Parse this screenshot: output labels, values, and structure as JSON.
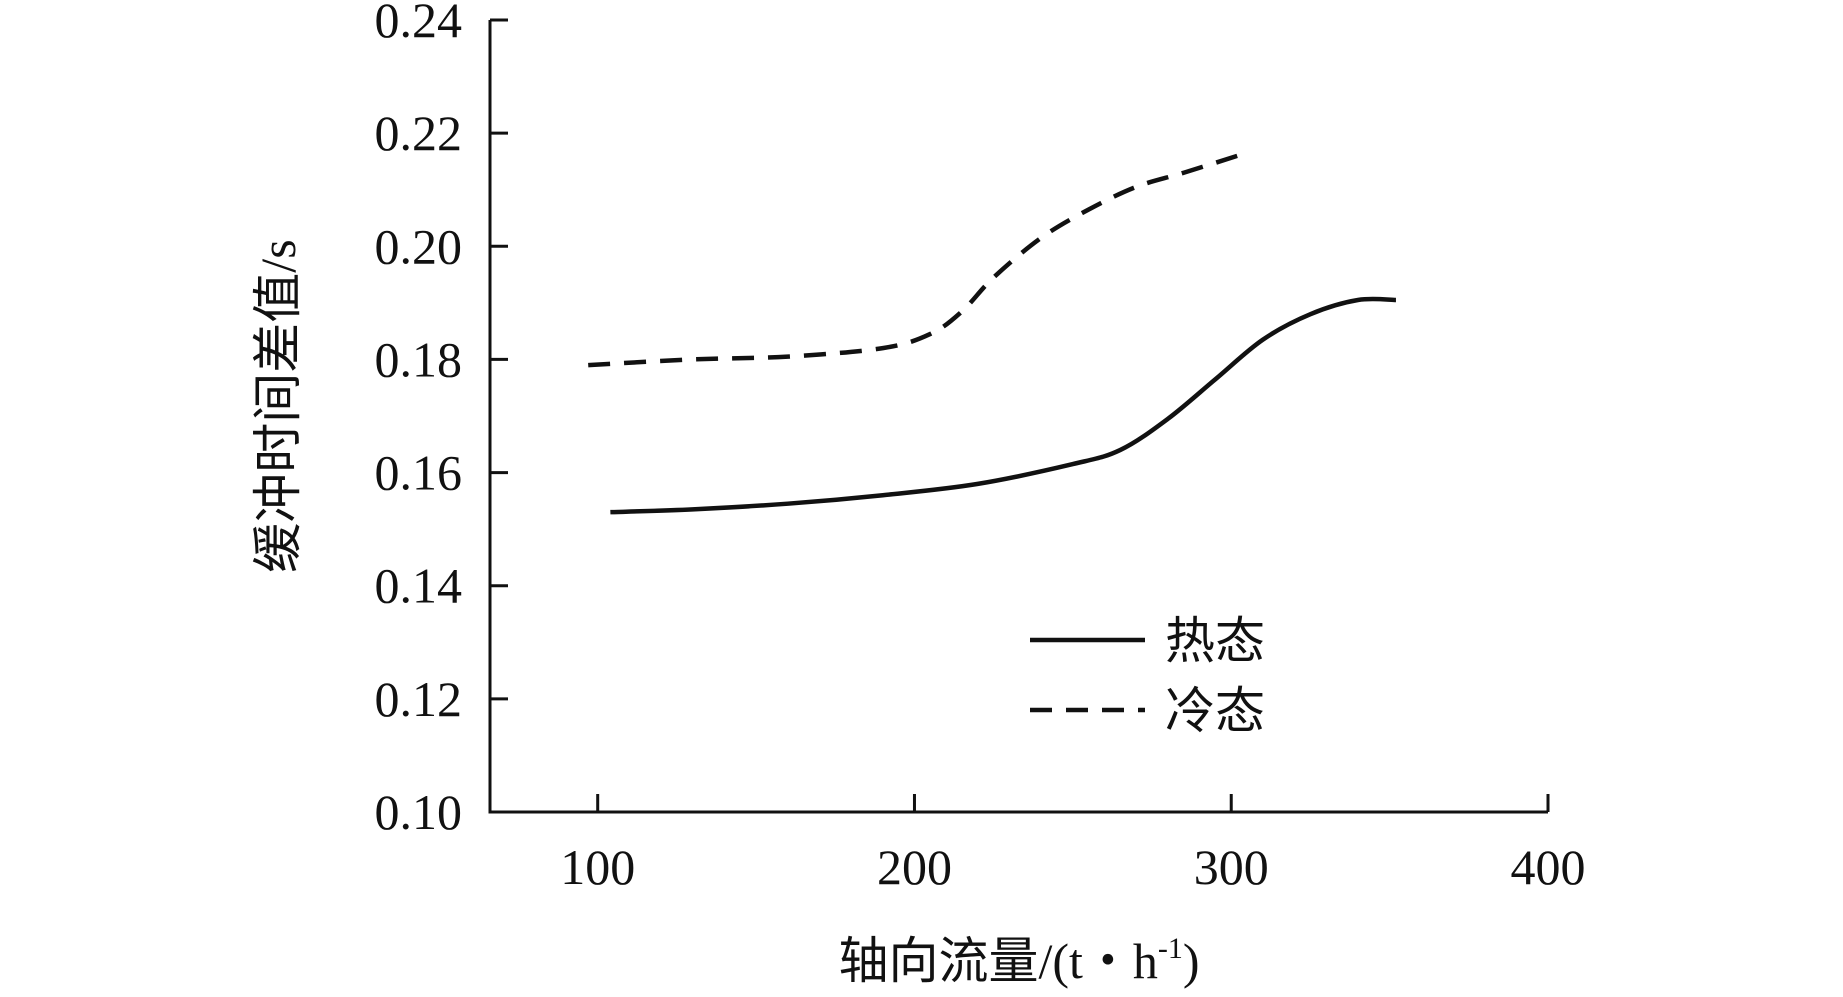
{
  "chart_data": {
    "type": "line",
    "title": "",
    "xlabel": "轴向流量/(t・h",
    "xlabel_sup": "-1",
    "xlabel_close": ")",
    "ylabel": "缓冲时间差值/s",
    "xlim": [
      66,
      400
    ],
    "ylim": [
      0.1,
      0.24
    ],
    "x_ticks": [
      100,
      200,
      300,
      400
    ],
    "x_tick_labels": [
      "100",
      "200",
      "300",
      "400"
    ],
    "y_ticks": [
      0.1,
      0.12,
      0.14,
      0.16,
      0.18,
      0.2,
      0.22,
      0.24
    ],
    "y_tick_labels": [
      "0.10",
      "0.12",
      "0.14",
      "0.16",
      "0.18",
      "0.20",
      "0.22",
      "0.24"
    ],
    "grid": false,
    "legend_position": "bottom-right",
    "series": [
      {
        "name": "热态",
        "style": "solid",
        "color": "#111111",
        "x": [
          104,
          130,
          160,
          190,
          220,
          250,
          265,
          280,
          295,
          310,
          325,
          340,
          352
        ],
        "y": [
          0.153,
          0.1535,
          0.1545,
          0.156,
          0.158,
          0.1615,
          0.164,
          0.1695,
          0.1765,
          0.1835,
          0.188,
          0.1905,
          0.1905
        ]
      },
      {
        "name": "冷态",
        "style": "dashed",
        "color": "#111111",
        "x": [
          97,
          130,
          160,
          190,
          205,
          215,
          225,
          240,
          255,
          270,
          285,
          302
        ],
        "y": [
          0.179,
          0.18,
          0.1805,
          0.182,
          0.1845,
          0.1885,
          0.1945,
          0.2015,
          0.2065,
          0.2105,
          0.213,
          0.216
        ]
      }
    ]
  }
}
